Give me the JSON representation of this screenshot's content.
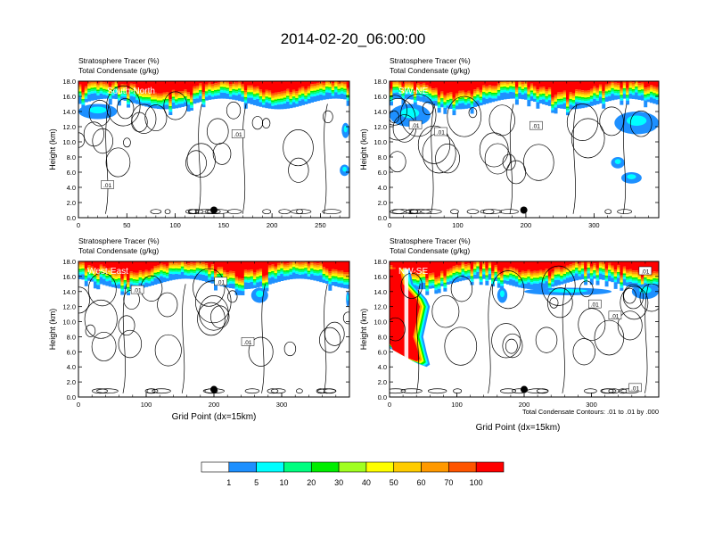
{
  "figure": {
    "title": "2014-02-20_06:00:00",
    "footnote": "Total Condensate Contours: .01 to .01 by .000"
  },
  "colors": {
    "levels": [
      "#ffffff",
      "#1e90ff",
      "#00ffff",
      "#00ff80",
      "#00ee00",
      "#a0ff20",
      "#ffff00",
      "#ffcc00",
      "#ff9900",
      "#ff5500",
      "#ff0000"
    ],
    "contour": "#000000"
  },
  "chart_data": [
    {
      "type": "heatmap",
      "name": "South-North",
      "label_1": "Stratosphere Tracer   (%)",
      "label_2": "Total Condensate   (g/kg)",
      "ylabel": "Height (km)",
      "xlabel": "",
      "xlim": [
        0,
        280
      ],
      "xticks": [
        0,
        50,
        100,
        150,
        200,
        250
      ],
      "ylim": [
        0,
        18
      ],
      "yticks": [
        "0.0",
        "2.0",
        "4.0",
        "6.0",
        "8.0",
        "10.0",
        "12.0",
        "14.0",
        "16.0",
        "18.0"
      ],
      "marker": {
        "x": 140,
        "y": 1.0
      },
      "contour_labels": [
        {
          "text": ".01",
          "x": 165,
          "y": 11.0
        },
        {
          "text": ".01",
          "x": 30,
          "y": 4.3
        }
      ],
      "blue_patches": [
        {
          "x0": 0,
          "x1": 40,
          "y0": 13.0,
          "y1": 15.0
        },
        {
          "x0": 272,
          "x1": 280,
          "y0": 10.5,
          "y1": 12.5
        },
        {
          "x0": 270,
          "x1": 280,
          "y0": 5.5,
          "y1": 7.0
        }
      ]
    },
    {
      "type": "heatmap",
      "name": "SW-NE",
      "label_1": "Stratosphere Tracer   (%)",
      "label_2": "Total Condensate   (g/kg)",
      "ylabel": "Height (km)",
      "xlabel": "",
      "xlim": [
        0,
        395
      ],
      "xticks": [
        0,
        100,
        200,
        300
      ],
      "ylim": [
        0,
        18
      ],
      "yticks": [
        "0.0",
        "2.0",
        "4.0",
        "6.0",
        "8.0",
        "10.0",
        "12.0",
        "14.0",
        "16.0",
        "18.0"
      ],
      "marker": {
        "x": 197,
        "y": 1.0
      },
      "contour_labels": [
        {
          "text": ".01",
          "x": 38,
          "y": 12.2
        },
        {
          "text": ".01",
          "x": 75,
          "y": 11.3
        },
        {
          "text": ".01",
          "x": 215,
          "y": 12.1
        }
      ],
      "blue_patches": [
        {
          "x0": 0,
          "x1": 60,
          "y0": 12.0,
          "y1": 15.0
        },
        {
          "x0": 325,
          "x1": 345,
          "y0": 6.5,
          "y1": 8.0
        },
        {
          "x0": 340,
          "x1": 370,
          "y0": 4.5,
          "y1": 6.0
        },
        {
          "x0": 330,
          "x1": 395,
          "y0": 11.0,
          "y1": 14.0
        }
      ]
    },
    {
      "type": "heatmap",
      "name": "West-East",
      "label_1": "Stratosphere Tracer   (%)",
      "label_2": "Total Condensate   (g/kg)",
      "ylabel": "Height (km)",
      "xlabel": "Grid Point (dx=15km)",
      "xlim": [
        0,
        400
      ],
      "xticks": [
        0,
        100,
        200,
        300
      ],
      "ylim": [
        0,
        18
      ],
      "yticks": [
        "0.0",
        "2.0",
        "4.0",
        "6.0",
        "8.0",
        "10.0",
        "12.0",
        "14.0",
        "16.0",
        "18.0"
      ],
      "marker": {
        "x": 200,
        "y": 1.0
      },
      "contour_labels": [
        {
          "text": ".01",
          "x": 87,
          "y": 14.2
        },
        {
          "text": ".01",
          "x": 210,
          "y": 15.3
        },
        {
          "text": ".01",
          "x": 250,
          "y": 7.3
        }
      ],
      "blue_patches": [
        {
          "x0": 255,
          "x1": 280,
          "y0": 12.5,
          "y1": 14.5
        },
        {
          "x0": 395,
          "x1": 400,
          "y0": 12.0,
          "y1": 14.0
        }
      ]
    },
    {
      "type": "heatmap",
      "name": "NW-SE",
      "label_1": "Stratosphere Tracer   (%)",
      "label_2": "Total Condensate   (g/kg)",
      "ylabel": "Height (km)",
      "xlabel": "Grid Point (dx=15km)",
      "xlim": [
        0,
        400
      ],
      "xticks": [
        0,
        100,
        200,
        300
      ],
      "ylim": [
        0,
        18
      ],
      "yticks": [
        "0.0",
        "2.0",
        "4.0",
        "6.0",
        "8.0",
        "10.0",
        "12.0",
        "14.0",
        "16.0",
        "18.0"
      ],
      "marker": {
        "x": 200,
        "y": 1.0
      },
      "contour_labels": [
        {
          "text": ".01",
          "x": 380,
          "y": 16.7
        },
        {
          "text": ".01",
          "x": 305,
          "y": 12.3
        },
        {
          "text": ".01",
          "x": 335,
          "y": 10.8
        },
        {
          "text": ".01",
          "x": 365,
          "y": 1.2
        }
      ],
      "blue_patches": [
        {
          "x0": 160,
          "x1": 175,
          "y0": 12.5,
          "y1": 14.5
        },
        {
          "x0": 360,
          "x1": 400,
          "y0": 13.0,
          "y1": 15.0
        },
        {
          "x0": 200,
          "x1": 330,
          "y0": 13.5,
          "y1": 14.5
        }
      ]
    }
  ],
  "colorbar": {
    "labels": [
      "1",
      "5",
      "10",
      "20",
      "30",
      "40",
      "50",
      "60",
      "70",
      "100"
    ]
  }
}
